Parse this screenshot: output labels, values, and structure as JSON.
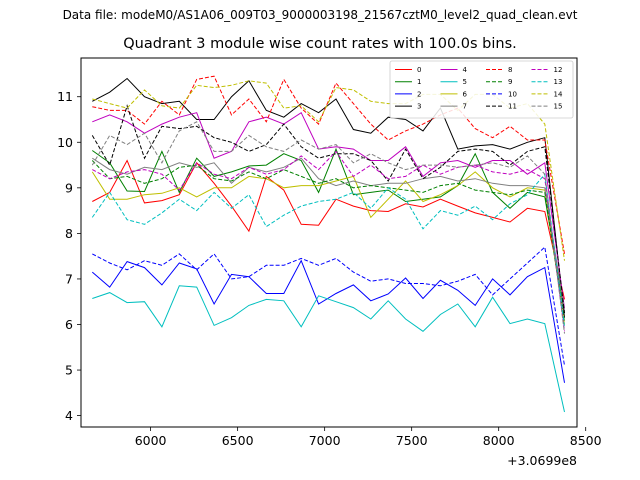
{
  "figure": {
    "suptitle": "Data file: modeM0/AS1A06_009T03_9000003198_21567cztM0_level2_quad_clean.evt",
    "title": "Quadrant 3 module wise count rates with 100.0s bins."
  },
  "chart_data": {
    "type": "line",
    "title": "Quadrant 3 module wise count rates with 100.0s bins.",
    "xlabel": "",
    "ylabel": "",
    "x_offset_label": "+3.0699e8",
    "xlim": [
      5600,
      8450
    ],
    "ylim": [
      3.75,
      11.85
    ],
    "xticks": [
      6000,
      6500,
      7000,
      7500,
      8000,
      8500
    ],
    "yticks": [
      4,
      5,
      6,
      7,
      8,
      9,
      10,
      11
    ],
    "legend": {
      "position": "top-right",
      "columns": 4
    },
    "grid": false,
    "x": [
      5665,
      5765,
      5865,
      5965,
      6065,
      6165,
      6265,
      6365,
      6465,
      6565,
      6665,
      6765,
      6865,
      6965,
      7065,
      7165,
      7265,
      7365,
      7465,
      7565,
      7665,
      7765,
      7865,
      7965,
      8065,
      8165,
      8265,
      8378
    ],
    "series": [
      {
        "name": "0",
        "color": "#ff0000",
        "dash": "solid",
        "values": [
          8.7,
          8.9,
          9.6,
          8.67,
          8.72,
          8.85,
          9.55,
          9.1,
          8.6,
          8.05,
          9.25,
          8.95,
          8.2,
          8.18,
          8.75,
          8.6,
          8.5,
          8.48,
          8.65,
          8.58,
          8.75,
          8.6,
          8.45,
          8.35,
          8.25,
          8.55,
          8.48,
          6.55
        ]
      },
      {
        "name": "1",
        "color": "#008000",
        "dash": "solid",
        "values": [
          9.82,
          9.55,
          8.93,
          8.92,
          9.8,
          8.9,
          9.65,
          9.25,
          9.35,
          9.48,
          9.5,
          9.75,
          9.6,
          8.9,
          9.85,
          8.85,
          8.9,
          8.95,
          8.7,
          8.75,
          8.8,
          9.05,
          9.75,
          8.9,
          8.55,
          8.9,
          8.8,
          6.25
        ]
      },
      {
        "name": "2",
        "color": "#0000ff",
        "dash": "solid",
        "values": [
          7.15,
          6.82,
          7.38,
          7.25,
          6.87,
          7.35,
          7.22,
          6.45,
          7.1,
          7.05,
          6.68,
          6.68,
          7.4,
          6.45,
          6.68,
          6.87,
          6.52,
          6.67,
          7.02,
          6.57,
          6.97,
          6.75,
          6.42,
          7.0,
          6.65,
          7.05,
          7.25,
          4.72
        ]
      },
      {
        "name": "3",
        "color": "#000000",
        "dash": "solid",
        "values": [
          10.9,
          11.1,
          11.4,
          11.0,
          10.85,
          10.9,
          10.5,
          10.5,
          11.0,
          11.35,
          10.7,
          10.55,
          10.85,
          10.65,
          10.95,
          10.28,
          10.2,
          10.55,
          10.5,
          10.25,
          10.75,
          9.85,
          9.92,
          9.95,
          9.85,
          10.0,
          10.1,
          6.15
        ]
      },
      {
        "name": "4",
        "color": "#bf00bf",
        "dash": "solid",
        "values": [
          10.45,
          10.6,
          10.45,
          10.2,
          10.4,
          10.55,
          10.65,
          9.65,
          9.8,
          10.45,
          10.55,
          10.4,
          10.65,
          9.85,
          9.9,
          9.85,
          9.6,
          9.6,
          9.9,
          9.25,
          9.55,
          9.6,
          9.45,
          9.6,
          9.6,
          9.3,
          9.55,
          6.35
        ]
      },
      {
        "name": "5",
        "color": "#00bfbf",
        "dash": "solid",
        "values": [
          6.57,
          6.7,
          6.48,
          6.5,
          5.95,
          6.85,
          6.82,
          5.98,
          6.15,
          6.42,
          6.55,
          6.52,
          5.95,
          6.63,
          6.5,
          6.37,
          6.12,
          6.52,
          6.12,
          5.85,
          6.22,
          6.45,
          5.95,
          6.6,
          6.02,
          6.12,
          6.02,
          4.08
        ]
      },
      {
        "name": "6",
        "color": "#bfbf00",
        "dash": "solid",
        "values": [
          9.35,
          8.75,
          8.75,
          8.85,
          8.88,
          9.0,
          8.8,
          9.0,
          9.0,
          9.25,
          9.2,
          9.0,
          9.05,
          9.05,
          9.15,
          9.25,
          8.35,
          8.75,
          9.15,
          8.7,
          8.85,
          9.05,
          9.35,
          9.0,
          8.8,
          9.0,
          8.95,
          6.0
        ]
      },
      {
        "name": "7",
        "color": "#808080",
        "dash": "solid",
        "values": [
          9.65,
          9.4,
          9.3,
          9.45,
          9.4,
          9.55,
          9.45,
          9.55,
          9.1,
          9.45,
          9.35,
          9.45,
          9.65,
          9.2,
          9.05,
          9.15,
          9.05,
          9.1,
          9.1,
          9.2,
          9.25,
          9.15,
          9.2,
          9.1,
          9.05,
          9.05,
          9.0,
          6.3
        ]
      },
      {
        "name": "8",
        "color": "#ff0000",
        "dash": "dashed",
        "values": [
          10.78,
          10.7,
          10.7,
          10.4,
          10.9,
          10.6,
          11.38,
          11.45,
          10.6,
          10.95,
          10.45,
          11.38,
          10.75,
          10.4,
          11.3,
          10.85,
          10.4,
          10.05,
          10.25,
          10.4,
          10.6,
          10.75,
          10.3,
          10.1,
          10.35,
          10.05,
          10.05,
          7.55
        ]
      },
      {
        "name": "9",
        "color": "#008000",
        "dash": "dashed",
        "values": [
          9.6,
          9.2,
          9.25,
          9.1,
          9.2,
          9.45,
          9.5,
          9.2,
          9.15,
          9.35,
          9.2,
          9.4,
          9.25,
          9.1,
          9.2,
          9.0,
          9.05,
          9.0,
          8.95,
          8.9,
          9.05,
          9.1,
          8.95,
          8.9,
          8.85,
          8.95,
          8.9,
          6.05
        ]
      },
      {
        "name": "10",
        "color": "#0000ff",
        "dash": "dashed",
        "values": [
          7.55,
          7.35,
          7.2,
          7.4,
          7.3,
          7.55,
          7.2,
          7.55,
          7.0,
          7.05,
          7.3,
          7.3,
          7.45,
          7.3,
          7.45,
          7.15,
          6.95,
          7.0,
          6.9,
          6.9,
          6.85,
          6.95,
          7.1,
          6.65,
          7.0,
          7.35,
          7.7,
          5.1
        ]
      },
      {
        "name": "11",
        "color": "#000000",
        "dash": "dashed",
        "values": [
          10.15,
          9.5,
          10.8,
          9.65,
          10.35,
          10.3,
          10.35,
          10.1,
          10.0,
          9.8,
          9.95,
          10.4,
          9.9,
          9.65,
          9.75,
          9.75,
          9.6,
          9.15,
          9.85,
          9.2,
          9.45,
          9.8,
          9.85,
          9.8,
          9.5,
          9.8,
          9.9,
          6.25
        ]
      },
      {
        "name": "12",
        "color": "#bf00bf",
        "dash": "dashed",
        "values": [
          9.4,
          9.2,
          9.35,
          9.4,
          9.3,
          8.95,
          9.55,
          9.3,
          9.2,
          9.45,
          9.3,
          9.4,
          9.7,
          9.4,
          9.8,
          9.25,
          9.5,
          9.2,
          9.25,
          9.5,
          9.3,
          9.45,
          9.5,
          9.35,
          9.3,
          9.4,
          9.2,
          5.85
        ]
      },
      {
        "name": "13",
        "color": "#00bfbf",
        "dash": "dashed",
        "values": [
          8.35,
          8.9,
          8.3,
          8.2,
          8.45,
          8.75,
          8.5,
          8.9,
          8.55,
          8.85,
          8.15,
          8.4,
          8.6,
          8.7,
          8.75,
          8.9,
          8.55,
          9.0,
          8.75,
          8.1,
          8.5,
          8.4,
          8.6,
          8.3,
          8.65,
          8.85,
          9.3,
          5.95
        ]
      },
      {
        "name": "14",
        "color": "#bfbf00",
        "dash": "dashed",
        "values": [
          10.95,
          10.85,
          10.75,
          11.15,
          10.8,
          10.75,
          11.25,
          11.2,
          11.25,
          11.35,
          11.3,
          10.75,
          10.8,
          10.45,
          11.2,
          11.15,
          10.9,
          10.85,
          10.85,
          11.05,
          11.05,
          10.7,
          11.05,
          11.05,
          10.75,
          10.85,
          10.4,
          7.4
        ]
      },
      {
        "name": "15",
        "color": "#808080",
        "dash": "dashed",
        "values": [
          9.5,
          10.15,
          9.95,
          10.2,
          9.55,
          10.25,
          10.45,
          9.8,
          9.8,
          10.15,
          9.9,
          9.8,
          10.05,
          9.85,
          9.95,
          9.55,
          9.75,
          9.55,
          9.4,
          9.5,
          9.5,
          9.45,
          9.5,
          9.55,
          9.45,
          9.7,
          9.3,
          5.8
        ]
      }
    ]
  }
}
